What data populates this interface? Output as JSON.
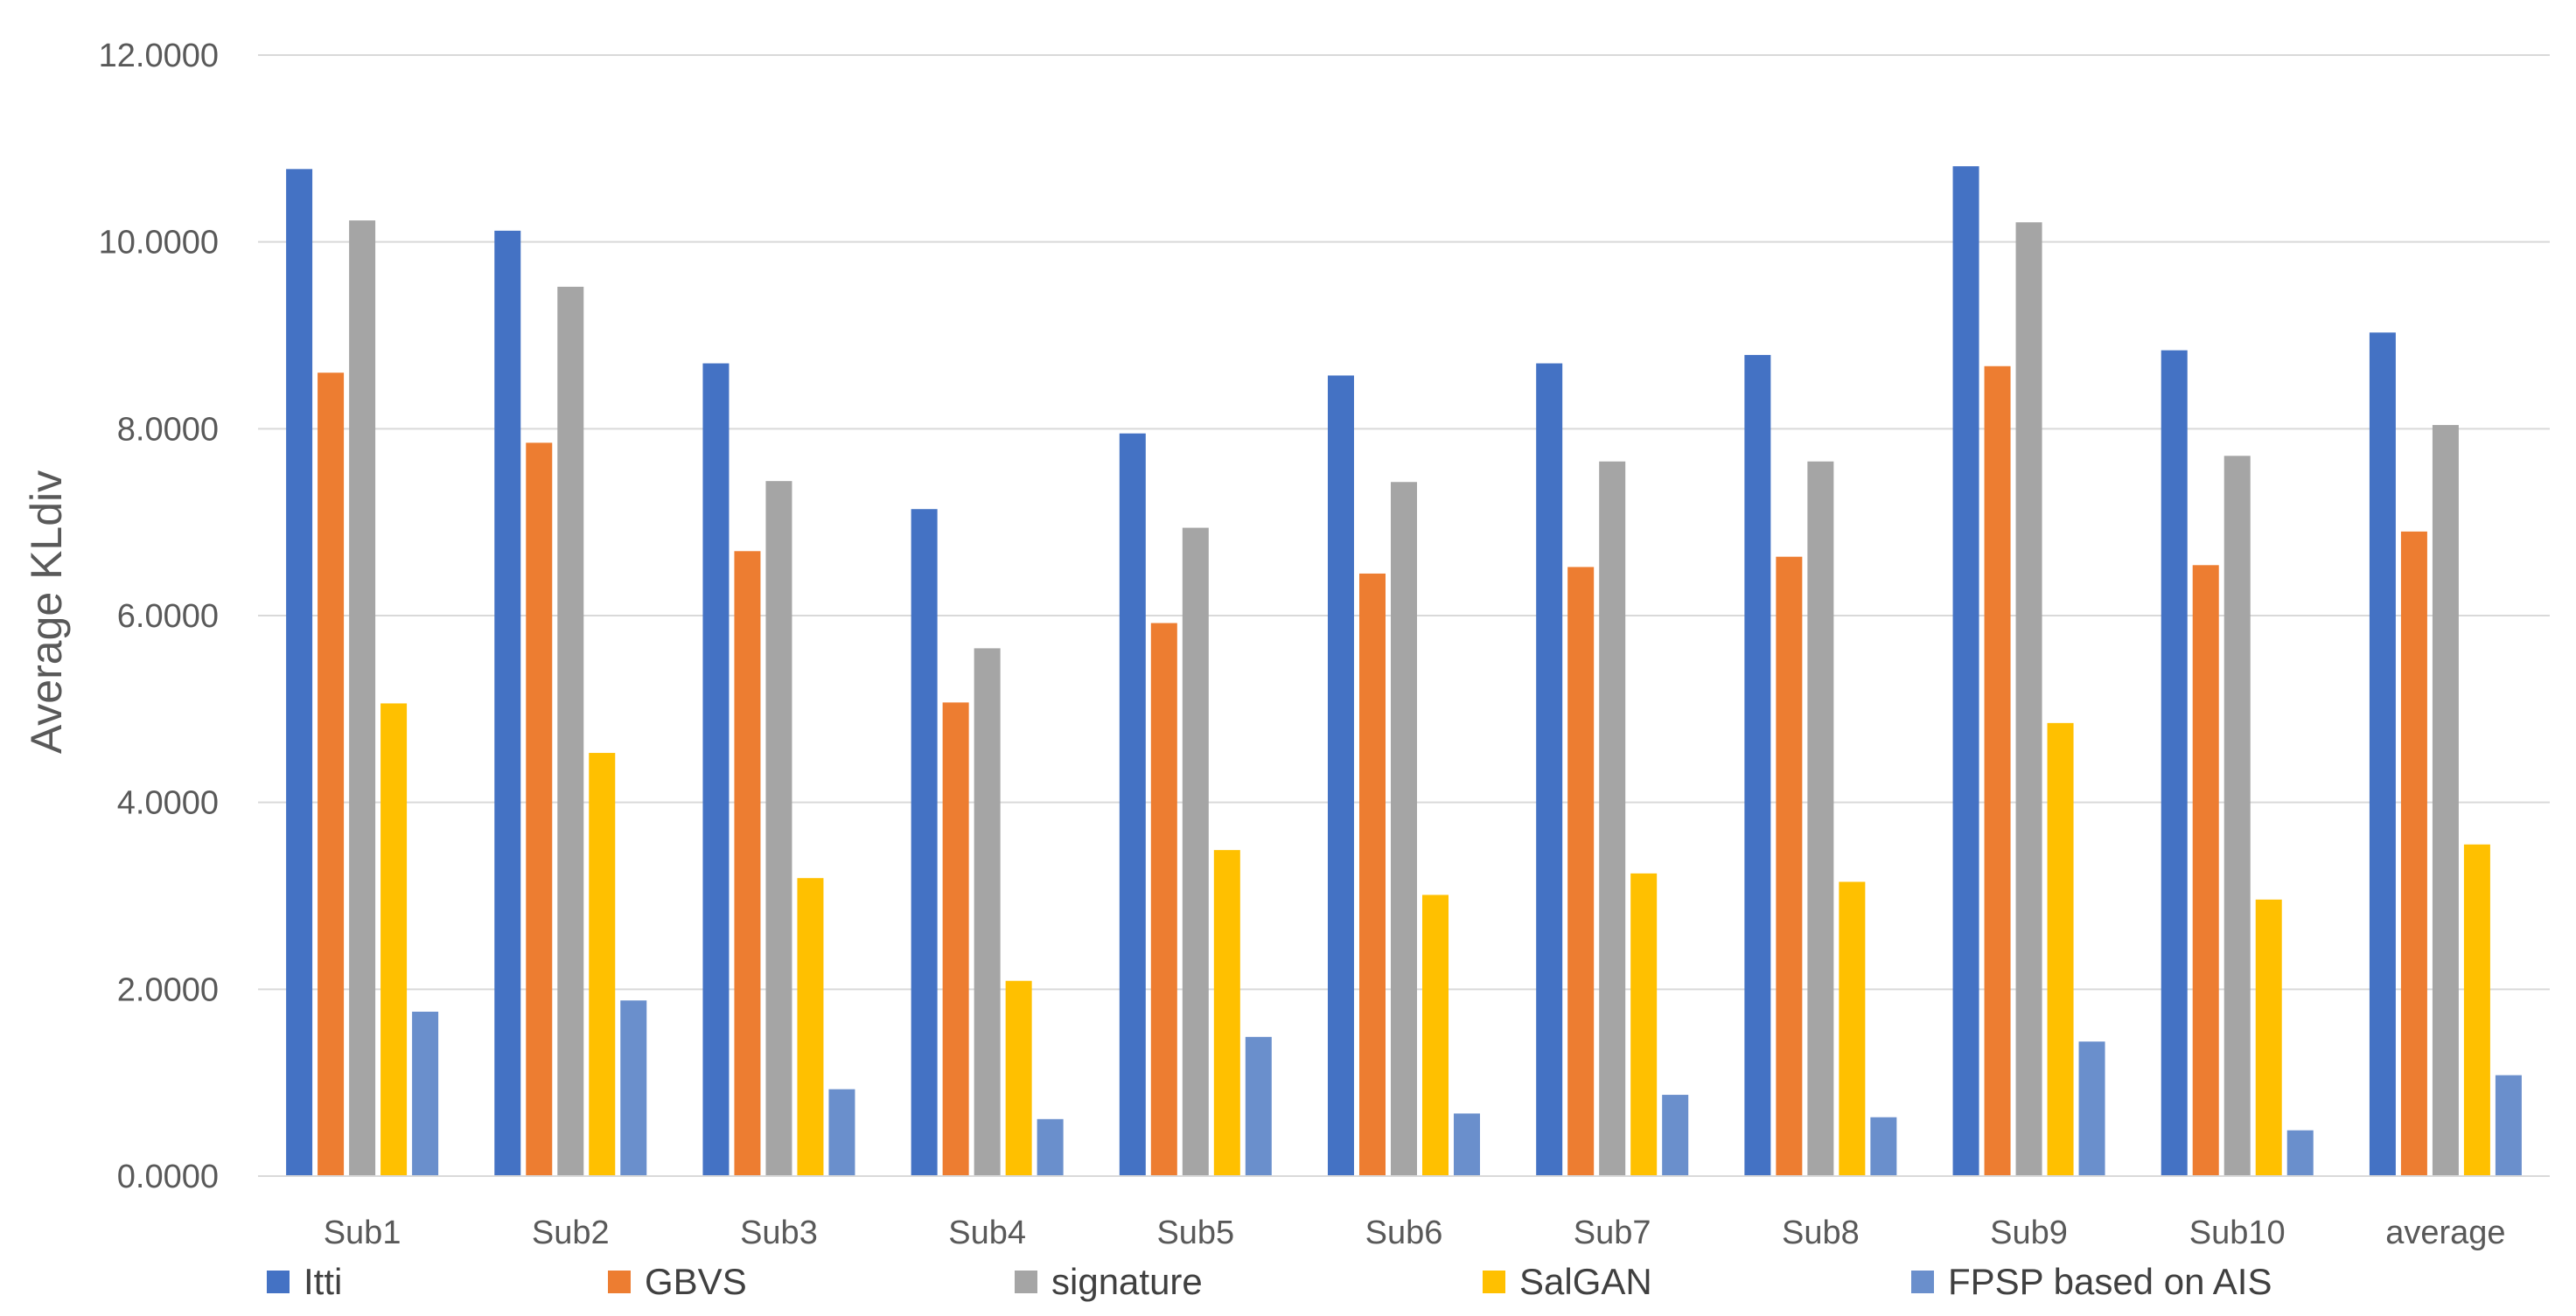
{
  "chart_data": {
    "type": "bar",
    "title": "",
    "xlabel": "",
    "ylabel": "Average KLdiv",
    "ylim": [
      0,
      12
    ],
    "yticks": [
      0,
      2,
      4,
      6,
      8,
      10,
      12
    ],
    "ytick_labels": [
      "0.0000",
      "2.0000",
      "4.0000",
      "6.0000",
      "8.0000",
      "10.0000",
      "12.0000"
    ],
    "grid": true,
    "legend_position": "bottom",
    "categories": [
      "Sub1",
      "Sub2",
      "Sub3",
      "Sub4",
      "Sub5",
      "Sub6",
      "Sub7",
      "Sub8",
      "Sub9",
      "Sub10",
      "average"
    ],
    "series": [
      {
        "name": "Itti",
        "color": "#4472C4",
        "values": [
          10.78,
          10.12,
          8.7,
          7.14,
          7.95,
          8.57,
          8.7,
          8.79,
          10.81,
          8.84,
          9.03
        ]
      },
      {
        "name": "GBVS",
        "color": "#ED7D31",
        "values": [
          8.6,
          7.85,
          6.69,
          5.07,
          5.92,
          6.45,
          6.52,
          6.63,
          8.67,
          6.54,
          6.9
        ]
      },
      {
        "name": "signature",
        "color": "#A5A5A5",
        "values": [
          10.23,
          9.52,
          7.44,
          5.65,
          6.94,
          7.43,
          7.65,
          7.65,
          10.21,
          7.71,
          8.04
        ]
      },
      {
        "name": "SalGAN",
        "color": "#FFC000",
        "values": [
          5.06,
          4.53,
          3.19,
          2.09,
          3.49,
          3.01,
          3.24,
          3.15,
          4.85,
          2.96,
          3.55
        ]
      },
      {
        "name": "FPSP based on AIS",
        "color": "#6A8FCC",
        "values": [
          1.76,
          1.88,
          0.93,
          0.61,
          1.49,
          0.67,
          0.87,
          0.63,
          1.44,
          0.49,
          1.08
        ]
      }
    ]
  }
}
